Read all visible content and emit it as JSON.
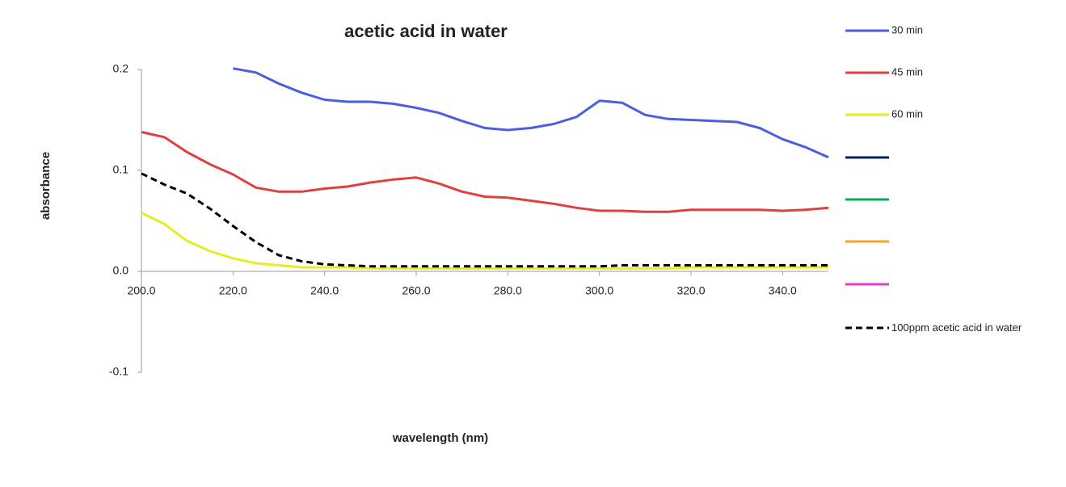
{
  "chart_data": {
    "type": "line",
    "title": "acetic acid in water",
    "x_label": "wavelength (nm)",
    "y_label": "absorbance",
    "x": [
      200,
      205,
      210,
      215,
      220,
      225,
      230,
      235,
      240,
      245,
      250,
      255,
      260,
      265,
      270,
      275,
      280,
      285,
      290,
      295,
      300,
      305,
      310,
      315,
      320,
      325,
      330,
      335,
      340,
      345,
      350
    ],
    "series": [
      {
        "name": "30 min",
        "color": "#4a5fe0",
        "values": [
          null,
          null,
          null,
          null,
          0.201,
          0.197,
          0.186,
          0.177,
          0.17,
          0.168,
          0.168,
          0.166,
          0.162,
          0.157,
          0.149,
          0.142,
          0.14,
          0.142,
          0.146,
          0.153,
          0.169,
          0.167,
          0.155,
          0.151,
          0.15,
          0.149,
          0.148,
          0.142,
          0.131,
          0.123,
          0.113
        ]
      },
      {
        "name": "45 min",
        "color": "#e04040",
        "values": [
          0.138,
          0.133,
          0.118,
          0.106,
          0.096,
          0.083,
          0.079,
          0.079,
          0.082,
          0.084,
          0.088,
          0.091,
          0.093,
          0.087,
          0.079,
          0.074,
          0.073,
          0.07,
          0.067,
          0.063,
          0.06,
          0.06,
          0.059,
          0.059,
          0.061,
          0.061,
          0.061,
          0.061,
          0.06,
          0.061,
          0.063
        ]
      },
      {
        "name": "60 min",
        "color": "#e6ee1e",
        "values": [
          0.058,
          0.047,
          0.03,
          0.02,
          0.013,
          0.008,
          0.006,
          0.004,
          0.004,
          0.004,
          0.003,
          0.003,
          0.003,
          0.003,
          0.003,
          0.003,
          0.003,
          0.003,
          0.003,
          0.003,
          0.003,
          0.003,
          0.003,
          0.003,
          0.004,
          0.004,
          0.004,
          0.004,
          0.004,
          0.004,
          0.004
        ]
      },
      {
        "name": "100ppm acetic acid in water",
        "color": "#000000",
        "line_style": "dashed",
        "values": [
          0.097,
          0.086,
          0.077,
          0.062,
          0.045,
          0.029,
          0.016,
          0.01,
          0.007,
          0.006,
          0.005,
          0.005,
          0.005,
          0.005,
          0.005,
          0.005,
          0.005,
          0.005,
          0.005,
          0.005,
          0.005,
          0.006,
          0.006,
          0.006,
          0.006,
          0.006,
          0.006,
          0.006,
          0.006,
          0.006,
          0.006
        ]
      }
    ],
    "legend_unnamed_colors": [
      "#002060",
      "#00b050",
      "#f5a623",
      "#e040c8"
    ],
    "xlim": [
      200,
      350
    ],
    "xticks": [
      {
        "value": 200,
        "label": "200.0"
      },
      {
        "value": 220,
        "label": "220.0"
      },
      {
        "value": 240,
        "label": "240.0"
      },
      {
        "value": 260,
        "label": "260.0"
      },
      {
        "value": 280,
        "label": "280.0"
      },
      {
        "value": 300,
        "label": "300.0"
      },
      {
        "value": 320,
        "label": "320.0"
      },
      {
        "value": 340,
        "label": "340.0"
      }
    ],
    "ylim": [
      -0.1,
      0.2
    ],
    "yticks": [
      0.2,
      0.1,
      {
        "value": 0,
        "label": "0.0"
      },
      -0.1
    ],
    "grid": false
  }
}
